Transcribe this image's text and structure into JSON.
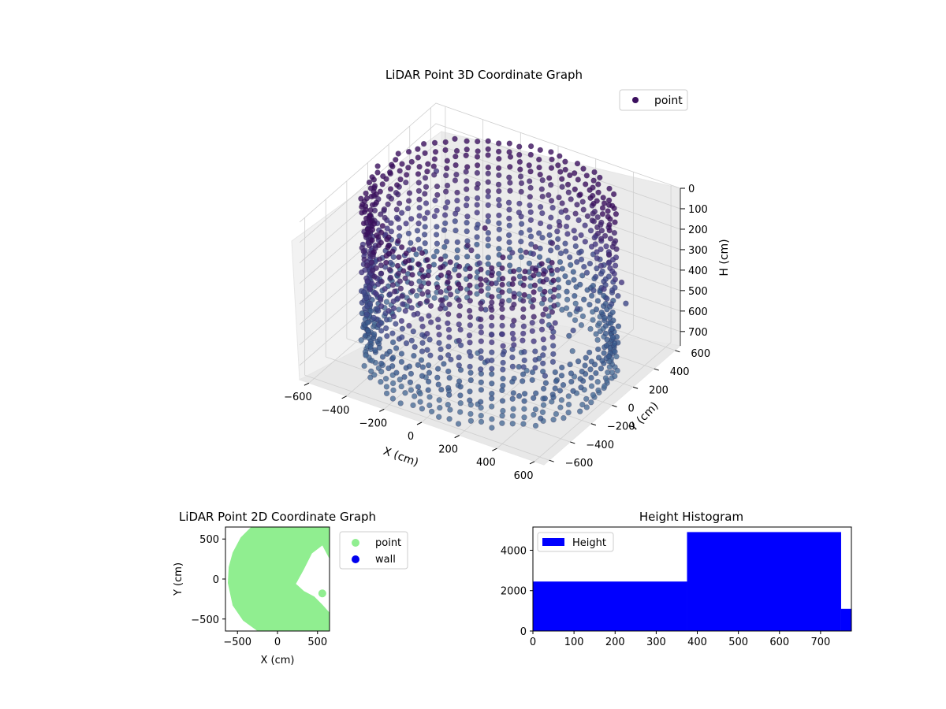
{
  "chart_data": [
    {
      "type": "scatter3d",
      "title": "LiDAR Point 3D Coordinate Graph",
      "xlabel": "X (cm)",
      "ylabel": "Y (cm)",
      "zlabel": "H (cm)",
      "xticks": [
        -600,
        -400,
        -200,
        0,
        200,
        400,
        600
      ],
      "yticks": [
        -600,
        -400,
        -200,
        0,
        200,
        400,
        600
      ],
      "zticks": [
        0,
        100,
        200,
        300,
        400,
        500,
        600,
        700
      ],
      "xlim": [
        -650,
        650
      ],
      "ylim": [
        -650,
        650
      ],
      "zlim": [
        0,
        770
      ],
      "z_axis_inverted": true,
      "grid": true,
      "legend": {
        "position": "top-right",
        "entries": [
          {
            "label": "point",
            "color": "#3b0f5e"
          }
        ]
      },
      "colormap": "viridis",
      "shape": {
        "type": "cylindrical-wall",
        "radius_cm": 600,
        "height_range": [
          0,
          770
        ],
        "opening_angle_deg": [
          -30,
          35
        ]
      }
    },
    {
      "type": "scatter",
      "title": "LiDAR Point 2D Coordinate Graph",
      "xlabel": "X (cm)",
      "ylabel": "Y (cm)",
      "xticks": [
        -500,
        0,
        500
      ],
      "yticks": [
        -500,
        0,
        500
      ],
      "xlim": [
        -650,
        650
      ],
      "ylim": [
        -650,
        650
      ],
      "legend": {
        "position": "outside-right",
        "entries": [
          {
            "label": "point",
            "color": "#90ee90"
          },
          {
            "label": "wall",
            "color": "#0000ee"
          }
        ]
      },
      "marker_color": "#90ee90",
      "outlier_point": {
        "x": 560,
        "y": -180
      }
    },
    {
      "type": "histogram",
      "title": "Height Histogram",
      "xticks": [
        0,
        100,
        200,
        300,
        400,
        500,
        600,
        700
      ],
      "yticks": [
        0,
        2000,
        4000
      ],
      "xlim": [
        0,
        775
      ],
      "ylim": [
        0,
        5150
      ],
      "legend": {
        "position": "top-left",
        "entries": [
          {
            "label": "Height",
            "color": "#0000ff"
          }
        ]
      },
      "bar_color": "#0000ff",
      "bins": [
        {
          "start": 0,
          "end": 375,
          "count": 2450
        },
        {
          "start": 375,
          "end": 750,
          "count": 4900
        },
        {
          "start": 750,
          "end": 775,
          "count": 1100
        }
      ]
    }
  ]
}
